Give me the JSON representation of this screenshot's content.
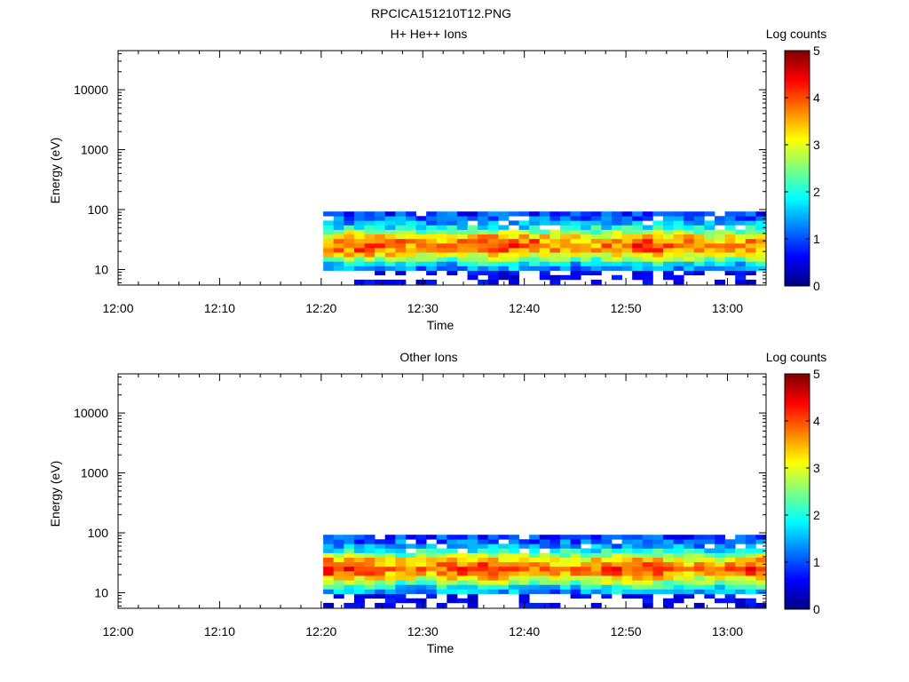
{
  "page_title": "RPCICA151210T12.PNG",
  "colors": {
    "axis": "#000000",
    "background": "#ffffff",
    "colormap": [
      "#00007f",
      "#0000ff",
      "#007fff",
      "#00ffff",
      "#7fff7f",
      "#ffff00",
      "#ff7f00",
      "#ff0000",
      "#7f0000"
    ]
  },
  "chart_data": [
    {
      "type": "heatmap",
      "title": "H+ He++ Ions",
      "xlabel": "Time",
      "ylabel": "Energy (eV)",
      "x_tick_labels": [
        "12:00",
        "12:10",
        "12:20",
        "12:30",
        "12:40",
        "12:50",
        "13:00"
      ],
      "x_tick_minutes": [
        0,
        10,
        20,
        30,
        40,
        50,
        60
      ],
      "xlim_minutes": [
        0,
        63.8
      ],
      "y_scale": "log",
      "y_tick_labels": [
        "10",
        "100",
        "1000",
        "10000"
      ],
      "y_tick_values": [
        10,
        100,
        1000,
        10000
      ],
      "ylim": [
        5.5,
        45000
      ],
      "colorbar": {
        "label": "Log counts",
        "ticks": [
          "0",
          "1",
          "2",
          "3",
          "4",
          "5"
        ],
        "range": [
          0,
          5
        ]
      },
      "data_start_minutes": 20.2,
      "data_end_minutes": 63.8,
      "time_bins": 43,
      "energy_bins_eV": [
        6.2,
        7.4,
        8.8,
        10.5,
        12.5,
        14.9,
        17.7,
        21.1,
        25.1,
        29.9,
        35.6,
        42.4,
        50.5,
        60.1,
        71.5,
        85.1
      ],
      "peak_profile_log_counts": [
        0.3,
        0.6,
        0.9,
        1.3,
        1.8,
        2.5,
        3.1,
        3.6,
        3.8,
        3.7,
        3.3,
        2.6,
        1.9,
        1.4,
        1.1,
        0.9
      ],
      "peak_energy_eV": 25,
      "peak_log_counts": 3.8
    },
    {
      "type": "heatmap",
      "title": "Other Ions",
      "xlabel": "Time",
      "ylabel": "Energy (eV)",
      "x_tick_labels": [
        "12:00",
        "12:10",
        "12:20",
        "12:30",
        "12:40",
        "12:50",
        "13:00"
      ],
      "x_tick_minutes": [
        0,
        10,
        20,
        30,
        40,
        50,
        60
      ],
      "xlim_minutes": [
        0,
        63.8
      ],
      "y_scale": "log",
      "y_tick_labels": [
        "10",
        "100",
        "1000",
        "10000"
      ],
      "y_tick_values": [
        10,
        100,
        1000,
        10000
      ],
      "ylim": [
        5.5,
        45000
      ],
      "colorbar": {
        "label": "Log counts",
        "ticks": [
          "0",
          "1",
          "2",
          "3",
          "4",
          "5"
        ],
        "range": [
          0,
          5
        ]
      },
      "data_start_minutes": 20.2,
      "data_end_minutes": 63.8,
      "time_bins": 43,
      "energy_bins_eV": [
        6.2,
        7.4,
        8.8,
        10.5,
        12.5,
        14.9,
        17.7,
        21.1,
        25.1,
        29.9,
        35.6,
        42.4,
        50.5,
        60.1,
        71.5,
        85.1
      ],
      "peak_profile_log_counts": [
        0.3,
        0.6,
        0.9,
        1.4,
        1.9,
        2.6,
        3.2,
        3.7,
        3.9,
        3.7,
        3.3,
        2.6,
        1.9,
        1.4,
        1.1,
        0.9
      ],
      "peak_energy_eV": 25,
      "peak_log_counts": 3.9
    }
  ]
}
